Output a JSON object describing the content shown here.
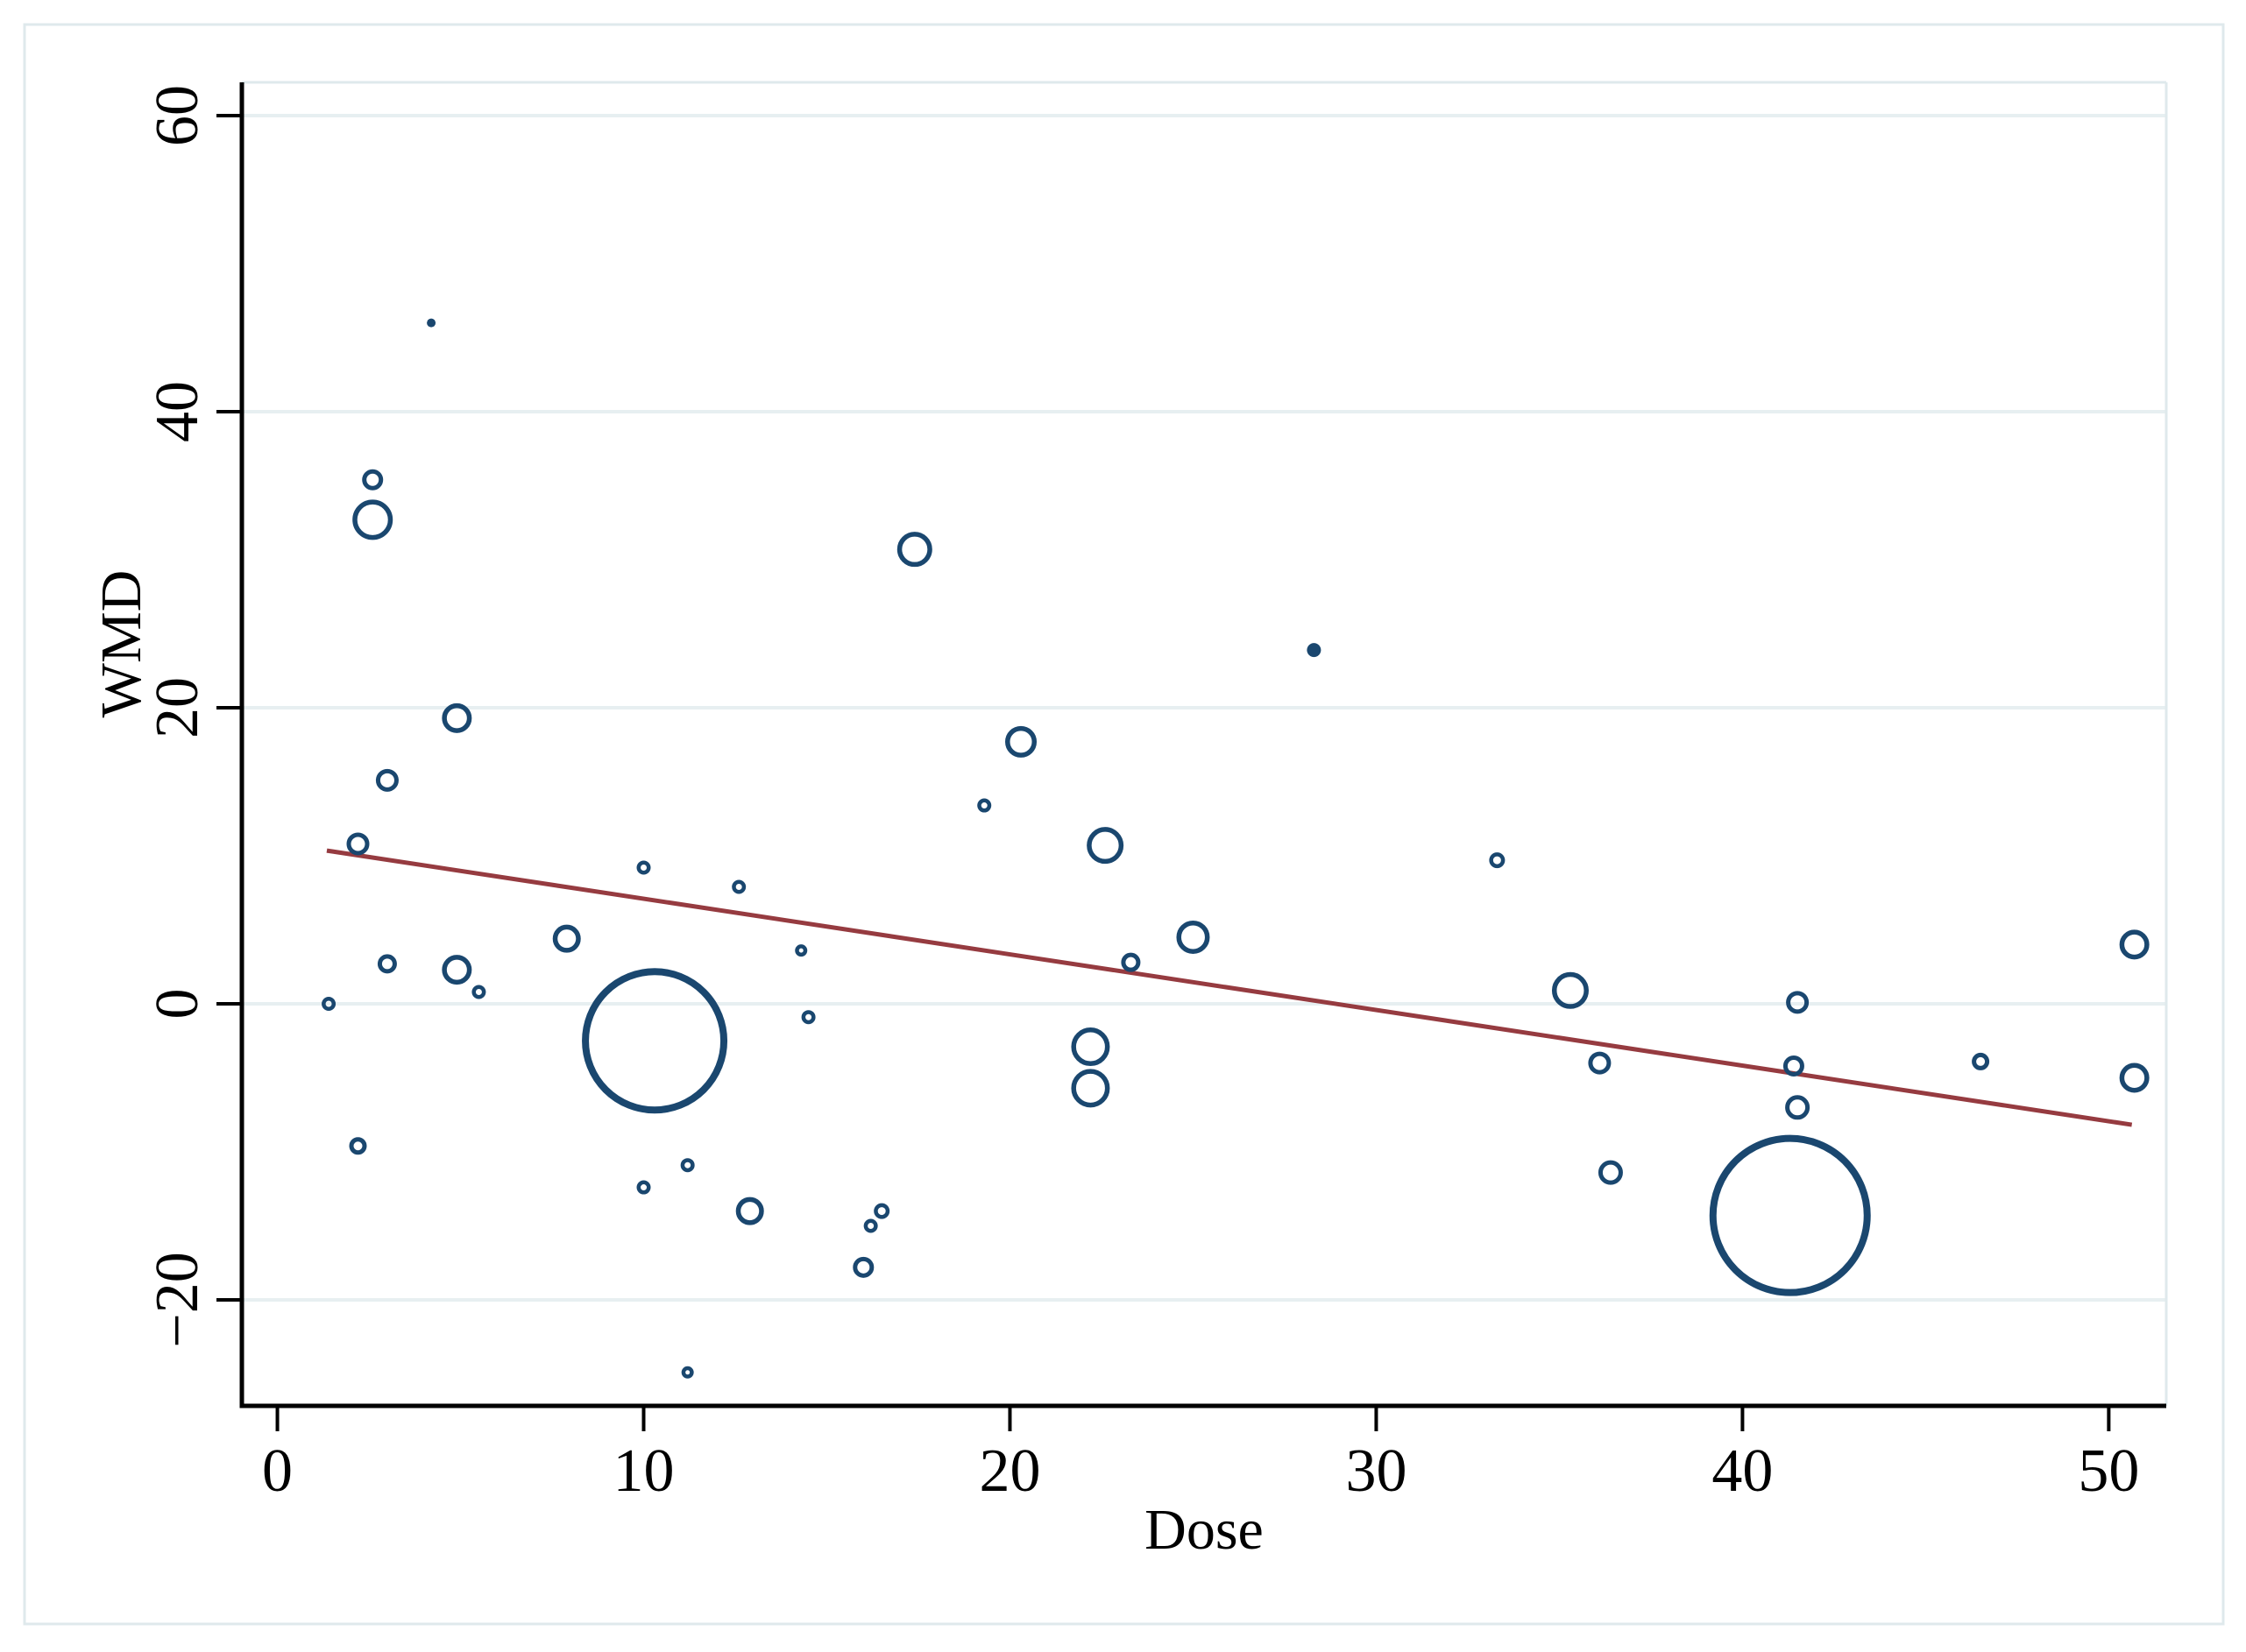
{
  "chart_data": {
    "type": "scatter",
    "subtype": "bubble-meta-regression",
    "title": "",
    "xlabel": "Dose",
    "ylabel": "WMD",
    "xlim": [
      -0.97,
      51.57
    ],
    "ylim": [
      -27.16,
      62.25
    ],
    "x_ticks": [
      0,
      10,
      20,
      30,
      40,
      50
    ],
    "y_ticks": [
      -20,
      0,
      20,
      40,
      60
    ],
    "x_tick_labels": [
      "0",
      "10",
      "20",
      "30",
      "40",
      "50"
    ],
    "y_tick_labels": [
      "−20",
      "0",
      "20",
      "40",
      "60"
    ],
    "grid": "horizontal",
    "legend": "none",
    "series": [
      {
        "name": "study-bubbles",
        "type": "bubble",
        "points": [
          {
            "dose": 4.2,
            "wmd": 46.0,
            "size": 5,
            "filled": true
          },
          {
            "dose": 2.6,
            "wmd": 35.4,
            "size": 12
          },
          {
            "dose": 2.6,
            "wmd": 32.7,
            "size": 23
          },
          {
            "dose": 4.9,
            "wmd": 19.3,
            "size": 17
          },
          {
            "dose": 3.0,
            "wmd": 15.1,
            "size": 13
          },
          {
            "dose": 2.2,
            "wmd": 10.8,
            "size": 13
          },
          {
            "dose": 1.4,
            "wmd": 0.0,
            "size": 8
          },
          {
            "dose": 3.0,
            "wmd": 2.7,
            "size": 11
          },
          {
            "dose": 4.9,
            "wmd": 2.3,
            "size": 17
          },
          {
            "dose": 5.5,
            "wmd": 0.8,
            "size": 8
          },
          {
            "dose": 7.9,
            "wmd": 4.4,
            "size": 16
          },
          {
            "dose": 2.2,
            "wmd": -9.6,
            "size": 10
          },
          {
            "dose": 10.0,
            "wmd": 9.2,
            "size": 8
          },
          {
            "dose": 12.6,
            "wmd": 7.9,
            "size": 8
          },
          {
            "dose": 14.3,
            "wmd": 3.6,
            "size": 7
          },
          {
            "dose": 14.5,
            "wmd": -0.9,
            "size": 8
          },
          {
            "dose": 10.3,
            "wmd": -2.5,
            "size": 83,
            "stroke": 8
          },
          {
            "dose": 10.0,
            "wmd": -12.4,
            "size": 8
          },
          {
            "dose": 11.2,
            "wmd": -10.9,
            "size": 8
          },
          {
            "dose": 12.9,
            "wmd": -14.0,
            "size": 16
          },
          {
            "dose": 16.5,
            "wmd": -14.0,
            "size": 9
          },
          {
            "dose": 16.2,
            "wmd": -15.0,
            "size": 8
          },
          {
            "dose": 16.0,
            "wmd": -17.8,
            "size": 12
          },
          {
            "dose": 11.2,
            "wmd": -24.9,
            "size": 7
          },
          {
            "dose": 17.4,
            "wmd": 30.7,
            "size": 20
          },
          {
            "dose": 20.3,
            "wmd": 17.7,
            "size": 18
          },
          {
            "dose": 19.3,
            "wmd": 13.4,
            "size": 8
          },
          {
            "dose": 22.6,
            "wmd": 10.7,
            "size": 21
          },
          {
            "dose": 23.3,
            "wmd": 2.8,
            "size": 11
          },
          {
            "dose": 25.0,
            "wmd": 4.5,
            "size": 19
          },
          {
            "dose": 22.2,
            "wmd": -2.9,
            "size": 22
          },
          {
            "dose": 22.2,
            "wmd": -5.7,
            "size": 22
          },
          {
            "dose": 28.3,
            "wmd": 23.9,
            "size": 8,
            "filled": true
          },
          {
            "dose": 33.3,
            "wmd": 9.7,
            "size": 9
          },
          {
            "dose": 35.3,
            "wmd": 0.9,
            "size": 21
          },
          {
            "dose": 36.1,
            "wmd": -4.0,
            "size": 13
          },
          {
            "dose": 41.5,
            "wmd": 0.1,
            "size": 13
          },
          {
            "dose": 41.4,
            "wmd": -4.2,
            "size": 12
          },
          {
            "dose": 41.5,
            "wmd": -7.0,
            "size": 14
          },
          {
            "dose": 36.4,
            "wmd": -11.4,
            "size": 14
          },
          {
            "dose": 41.3,
            "wmd": -14.3,
            "size": 92,
            "stroke": 8
          },
          {
            "dose": 46.5,
            "wmd": -3.9,
            "size": 10
          },
          {
            "dose": 50.7,
            "wmd": 4.0,
            "size": 17
          },
          {
            "dose": 50.7,
            "wmd": -5.0,
            "size": 17
          }
        ]
      },
      {
        "name": "fitted-regression-line",
        "type": "line",
        "x": [
          1.35,
          50.63
        ],
        "y": [
          10.35,
          -8.17
        ]
      }
    ]
  },
  "colors": {
    "bubble": "#1a476f",
    "fit_line": "#963b40",
    "grid": "#e7eff1",
    "frame": "#dfe9ec",
    "axis": "#000000",
    "background": "#ffffff"
  }
}
